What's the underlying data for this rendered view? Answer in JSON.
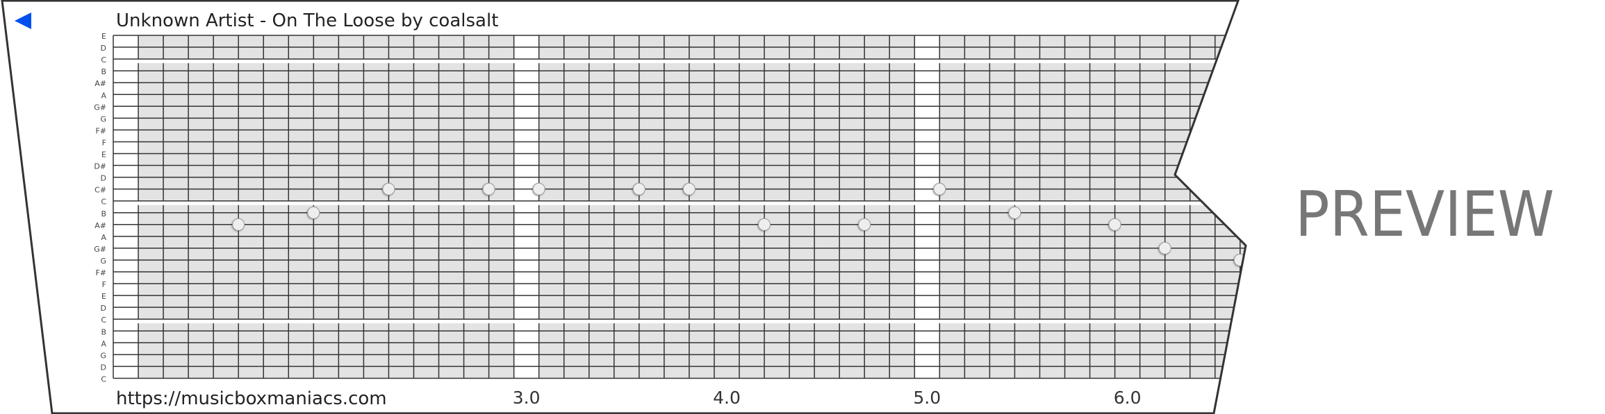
{
  "header": {
    "title": "Unknown Artist - On The Loose by coalsalt",
    "back_icon": "triangle-left-icon",
    "back_color": "#0050ef"
  },
  "footer": {
    "url": "https://musicboxmaniacs.com"
  },
  "watermark": "PREVIEW",
  "strip": {
    "pitches": [
      "E",
      "D",
      "C",
      "B",
      "A#",
      "A",
      "G#",
      "G",
      "F#",
      "F",
      "E",
      "D#",
      "D",
      "C#",
      "C",
      "B",
      "A#",
      "A",
      "G#",
      "G",
      "F#",
      "F",
      "E",
      "D",
      "C",
      "B",
      "A",
      "G",
      "D",
      "C"
    ],
    "beat_labels": [
      {
        "beat": 3.0,
        "label": "3.0"
      },
      {
        "beat": 4.0,
        "label": "4.0"
      },
      {
        "beat": 5.0,
        "label": "5.0"
      },
      {
        "beat": 6.0,
        "label": "6.0"
      }
    ],
    "subdivisions_per_beat": 8,
    "colors": {
      "cell": "#e3e3e3",
      "line": "#333333",
      "note": "#eeeeee"
    },
    "notes": [
      {
        "time": 1.625,
        "pitch": "A#",
        "row": 16
      },
      {
        "time": 2.0,
        "pitch": "B",
        "row": 15
      },
      {
        "time": 2.375,
        "pitch": "C#",
        "row": 13
      },
      {
        "time": 2.875,
        "pitch": "C#",
        "row": 13
      },
      {
        "time": 3.125,
        "pitch": "C#",
        "row": 13
      },
      {
        "time": 3.625,
        "pitch": "C#",
        "row": 13
      },
      {
        "time": 3.875,
        "pitch": "C#",
        "row": 13
      },
      {
        "time": 4.25,
        "pitch": "A#",
        "row": 16
      },
      {
        "time": 4.75,
        "pitch": "A#",
        "row": 16
      },
      {
        "time": 5.125,
        "pitch": "C#",
        "row": 13
      },
      {
        "time": 5.5,
        "pitch": "B",
        "row": 15
      },
      {
        "time": 6.0,
        "pitch": "A#",
        "row": 16
      },
      {
        "time": 6.25,
        "pitch": "G#",
        "row": 18
      },
      {
        "time": 6.625,
        "pitch": "G",
        "row": 19
      }
    ]
  }
}
